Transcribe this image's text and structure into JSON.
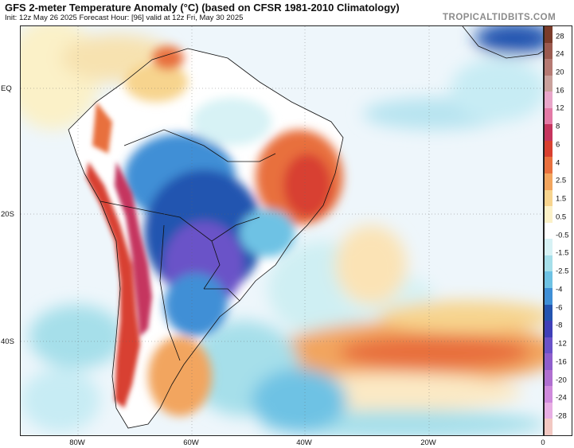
{
  "header": {
    "title": "GFS 2-meter Temperature Anomaly (°C) (based on CFSR 1981-2010 Climatology)",
    "subtitle": "Init: 12z May 26 2025   Forecast Hour: [96]   valid at 12z Fri, May 30 2025",
    "brand": "TROPICALTIDBITS.COM"
  },
  "axes": {
    "lat_labels": [
      "EQ",
      "20S",
      "40S"
    ],
    "lon_labels": [
      "80W",
      "60W",
      "40W",
      "20W",
      "0"
    ]
  },
  "legend": {
    "labels": [
      "28",
      "24",
      "20",
      "16",
      "12",
      "8",
      "6",
      "4",
      "2.5",
      "1.5",
      "0.5",
      "-0.5",
      "-1.5",
      "-2.5",
      "-4",
      "-6",
      "-8",
      "-12",
      "-16",
      "-20",
      "-24",
      "-28"
    ],
    "colors": [
      "#7a3b2a",
      "#9b5a4f",
      "#b57a73",
      "#c9a19c",
      "#e8a6c9",
      "#e37aa6",
      "#c5355e",
      "#d84030",
      "#e8703e",
      "#f2a55e",
      "#f7d48e",
      "#fbf1c8",
      "#ffffff",
      "#d7f2f5",
      "#a6dfea",
      "#6ec2e4",
      "#3f8fd6",
      "#2454b0",
      "#3f3fb8",
      "#6a52c8",
      "#8e5ecc",
      "#b06fd0",
      "#cf8adc",
      "#e7aee4",
      "#f2c8c2"
    ]
  }
}
